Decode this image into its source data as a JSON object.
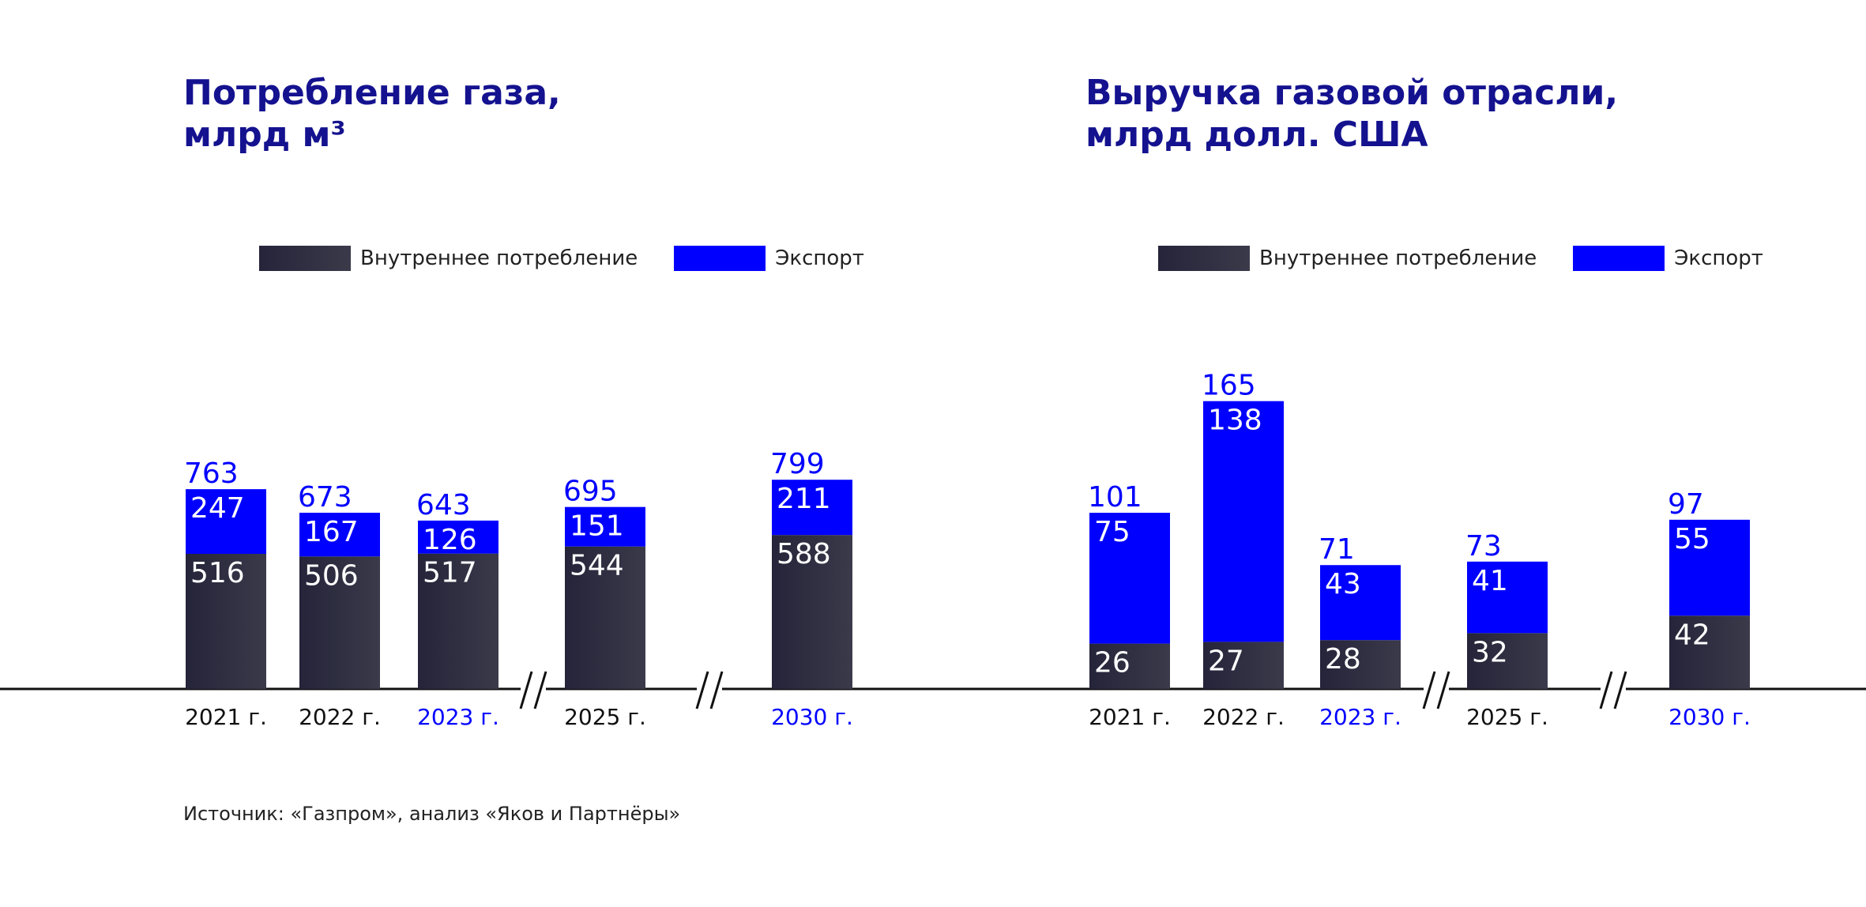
{
  "source": "Источник: «Газпром», анализ «Яков и Партнёры»",
  "colors": {
    "domestic": "#2b2a3c",
    "export": "#0000ff",
    "title": "#14128f",
    "highlight": "#0000ff",
    "text": "#111111"
  },
  "chart_data": [
    {
      "type": "bar",
      "stacked": true,
      "title_lines": [
        "Потребление газа,",
        "млрд м³"
      ],
      "legend": [
        "Внутреннее потребление",
        "Экспорт"
      ],
      "legend_position": "top",
      "categories": [
        "2021 г.",
        "2022 г.",
        "2023 г.",
        "2025 г.",
        "2030 г."
      ],
      "highlighted_categories": [
        "2023 г.",
        "2030 г."
      ],
      "axis_breaks_after": [
        "2023 г.",
        "2025 г."
      ],
      "series": [
        {
          "name": "Внутреннее потребление",
          "values": [
            516,
            506,
            517,
            544,
            588
          ]
        },
        {
          "name": "Экспорт",
          "values": [
            247,
            167,
            126,
            151,
            211
          ]
        }
      ],
      "totals": [
        763,
        673,
        643,
        695,
        799
      ],
      "grid": false
    },
    {
      "type": "bar",
      "stacked": true,
      "title_lines": [
        "Выручка газовой отрасли,",
        "млрд долл. США"
      ],
      "legend": [
        "Внутреннее потребление",
        "Экспорт"
      ],
      "legend_position": "top",
      "categories": [
        "2021 г.",
        "2022 г.",
        "2023 г.",
        "2025 г.",
        "2030 г."
      ],
      "highlighted_categories": [
        "2023 г.",
        "2030 г."
      ],
      "axis_breaks_after": [
        "2023 г.",
        "2025 г."
      ],
      "series": [
        {
          "name": "Внутреннее потребление",
          "values": [
            26,
            27,
            28,
            32,
            42
          ]
        },
        {
          "name": "Экспорт",
          "values": [
            75,
            138,
            43,
            41,
            55
          ]
        }
      ],
      "totals": [
        101,
        165,
        71,
        73,
        97
      ],
      "grid": false
    }
  ]
}
